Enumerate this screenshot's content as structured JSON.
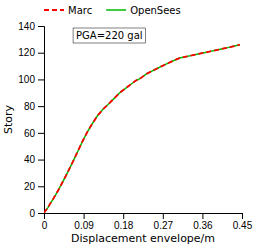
{
  "chart_data": {
    "type": "line",
    "xlabel": "Displacement envelope/m",
    "ylabel": "Story",
    "annotation": "PGA=220 gal",
    "x": [
      0.0,
      0.004,
      0.009,
      0.014,
      0.02,
      0.027,
      0.034,
      0.042,
      0.05,
      0.059,
      0.068,
      0.078,
      0.088,
      0.099,
      0.11,
      0.122,
      0.135,
      0.148,
      0.16,
      0.172,
      0.184,
      0.196,
      0.208,
      0.22,
      0.232,
      0.244,
      0.256,
      0.268,
      0.281,
      0.294,
      0.308,
      0.322,
      0.336,
      0.35,
      0.364,
      0.378,
      0.392,
      0.406,
      0.42,
      0.433,
      0.445
    ],
    "series": [
      {
        "name": "Marc",
        "color": "#ff0000",
        "line_style": "dashed",
        "values": [
          0,
          2,
          4,
          7,
          10,
          14,
          18,
          23,
          28,
          34,
          40,
          47,
          54,
          61,
          67,
          73,
          78,
          82,
          86,
          90,
          93,
          96,
          99,
          101,
          104,
          106,
          108,
          110,
          112,
          114,
          116,
          117,
          118,
          119,
          120,
          121,
          122,
          123,
          124,
          125,
          126
        ]
      },
      {
        "name": "OpenSees",
        "color": "#00bb00",
        "line_style": "solid",
        "values": [
          0,
          2,
          4,
          7,
          10,
          14,
          18,
          23,
          28,
          34,
          40,
          47,
          54,
          61,
          67,
          73,
          78,
          82,
          86,
          90,
          93,
          96,
          99,
          101,
          104,
          106,
          108,
          110,
          112,
          114,
          116,
          117,
          118,
          119,
          120,
          121,
          122,
          123,
          124,
          125,
          126
        ]
      }
    ],
    "xlim": [
      0,
      0.45
    ],
    "ylim": [
      0,
      140
    ],
    "xticks": [
      0,
      0.09,
      0.18,
      0.27,
      0.36,
      0.45
    ],
    "yticks": [
      0,
      20,
      40,
      60,
      80,
      100,
      120,
      140
    ],
    "legend": "top"
  }
}
